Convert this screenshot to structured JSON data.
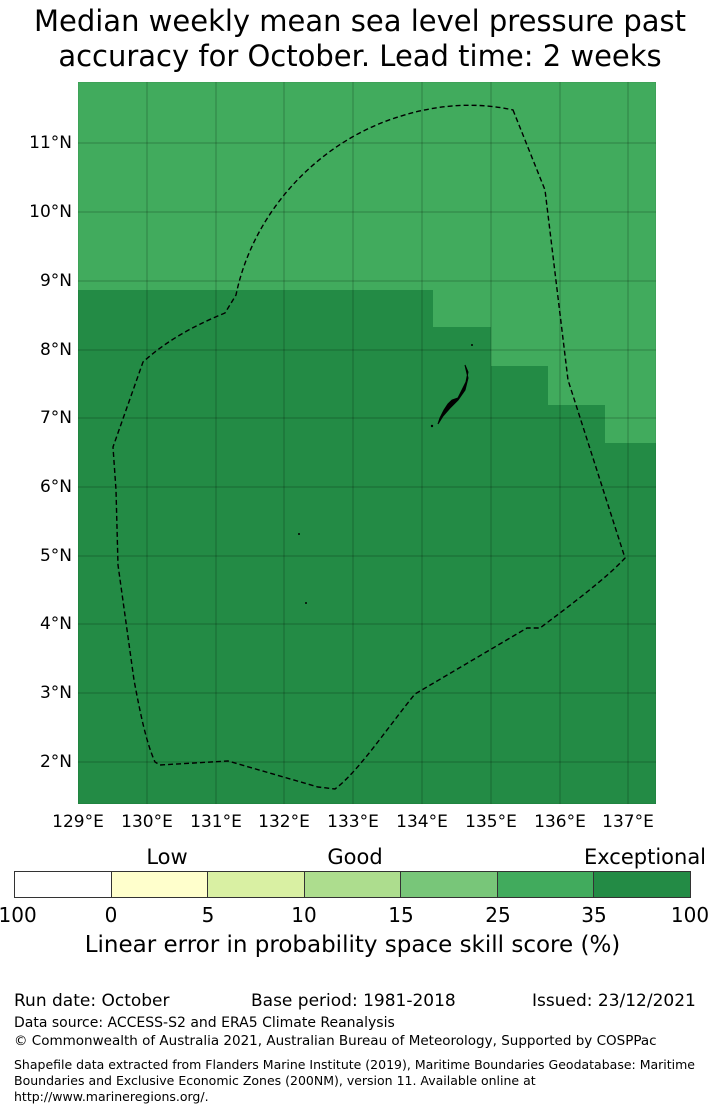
{
  "title": "Median weekly mean sea level pressure past accuracy for October. Lead time: 2 weeks",
  "map": {
    "lat_labels": [
      "11°N",
      "10°N",
      "9°N",
      "8°N",
      "7°N",
      "6°N",
      "5°N",
      "4°N",
      "3°N",
      "2°N"
    ],
    "lon_labels": [
      "129°E",
      "130°E",
      "131°E",
      "132°E",
      "133°E",
      "134°E",
      "135°E",
      "136°E",
      "137°E"
    ],
    "colors": {
      "upper": "#41ab5d",
      "lower": "#238b45"
    }
  },
  "colorbar": {
    "category_labels": [
      "Low",
      "Good",
      "Exceptional"
    ],
    "ticks": [
      "-100",
      "0",
      "5",
      "10",
      "15",
      "25",
      "35",
      "100"
    ],
    "colors": [
      "#ffffff",
      "#ffffcc",
      "#d9f0a3",
      "#addd8e",
      "#78c679",
      "#41ab5d",
      "#238b45"
    ],
    "label": "Linear error in probability space skill score (%)"
  },
  "footer": {
    "run_date": "Run date: October",
    "base_period": "Base period: 1981-2018",
    "issued": "Issued: 23/12/2021",
    "source": "Data source: ACCESS-S2 and ERA5 Climate Reanalysis",
    "copyright": "© Commonwealth of Australia 2021, Australian Bureau of Meteorology, Supported by COSPPac",
    "shapefile": "Shapefile data extracted from Flanders Marine Institute (2019), Maritime Boundaries Geodatabase: Maritime Boundaries and Exclusive Economic Zones (200NM), version 11. Available online at http://www.marineregions.org/."
  }
}
